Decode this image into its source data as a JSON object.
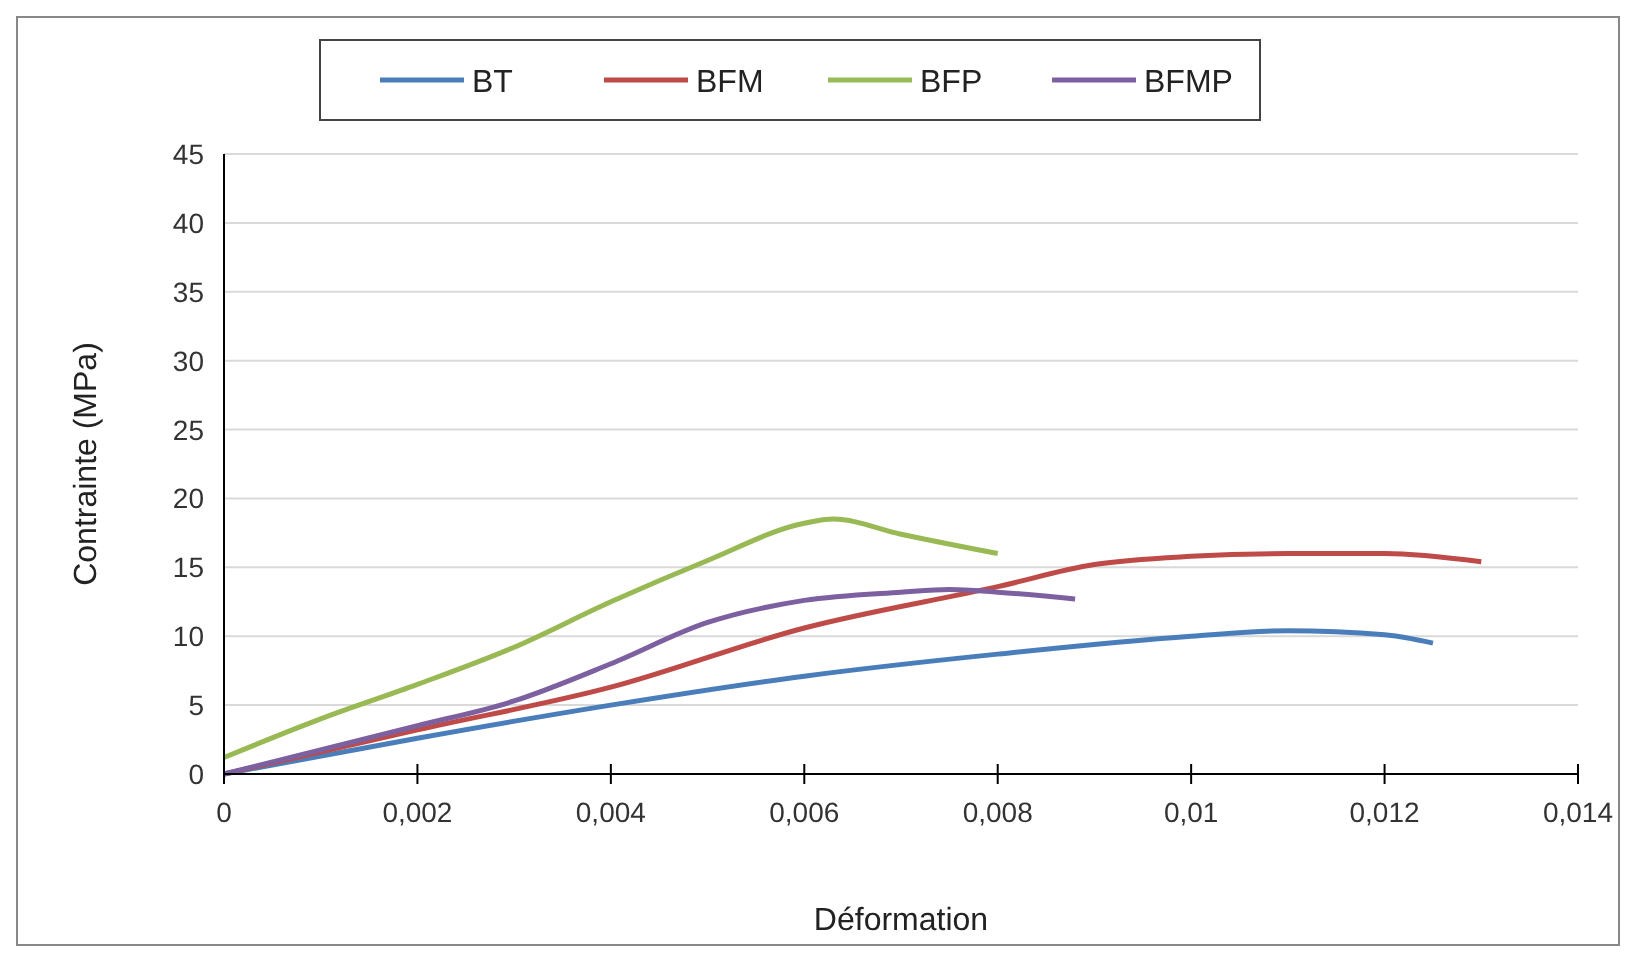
{
  "chart_data": {
    "type": "line",
    "xlabel": "Déformation",
    "ylabel": "Contrainte (MPa)",
    "xlim": [
      0,
      0.014
    ],
    "xticks": [
      0,
      {
        "value": 0.002,
        "label": "0,002"
      },
      {
        "value": 0.004,
        "label": "0,004"
      },
      {
        "value": 0.006,
        "label": "0,006"
      },
      {
        "value": 0.008,
        "label": "0,008"
      },
      {
        "value": 0.01,
        "label": "0,01"
      },
      {
        "value": 0.012,
        "label": "0,012"
      },
      {
        "value": 0.014,
        "label": "0,014"
      }
    ],
    "ylim": [
      0,
      45
    ],
    "yticks": [
      0,
      5,
      10,
      15,
      20,
      25,
      30,
      35,
      40,
      45
    ],
    "grid": "y",
    "legend": "top",
    "line_style": "solid",
    "marker": "none",
    "series": [
      {
        "name": "BT",
        "color": "#4a7ebb",
        "x": [
          0,
          0.002,
          0.004,
          0.006,
          0.008,
          0.01,
          0.011,
          0.012,
          0.0125
        ],
        "values": [
          0,
          2.6,
          5,
          7.1,
          8.7,
          10,
          10.4,
          10.1,
          9.5
        ]
      },
      {
        "name": "BFM",
        "color": "#be4b48",
        "x": [
          0,
          0.002,
          0.004,
          0.006,
          0.008,
          0.009,
          0.01,
          0.011,
          0.012,
          0.013
        ],
        "values": [
          0,
          3.2,
          6.3,
          10.6,
          13.6,
          15.2,
          15.8,
          16,
          16,
          15.4
        ]
      },
      {
        "name": "BFP",
        "color": "#98b954",
        "x": [
          0,
          0.001,
          0.002,
          0.003,
          0.004,
          0.005,
          0.006,
          0.0063,
          0.007,
          0.008
        ],
        "values": [
          1.2,
          4,
          6.5,
          9.2,
          12.5,
          15.5,
          18.2,
          18.5,
          17.4,
          16
        ]
      },
      {
        "name": "BFMP",
        "color": "#7d60a0",
        "x": [
          0,
          0.002,
          0.003,
          0.004,
          0.005,
          0.006,
          0.007,
          0.0075,
          0.008,
          0.0088
        ],
        "values": [
          0,
          3.5,
          5.3,
          8,
          11,
          12.6,
          13.2,
          13.4,
          13.2,
          12.7
        ]
      }
    ]
  }
}
